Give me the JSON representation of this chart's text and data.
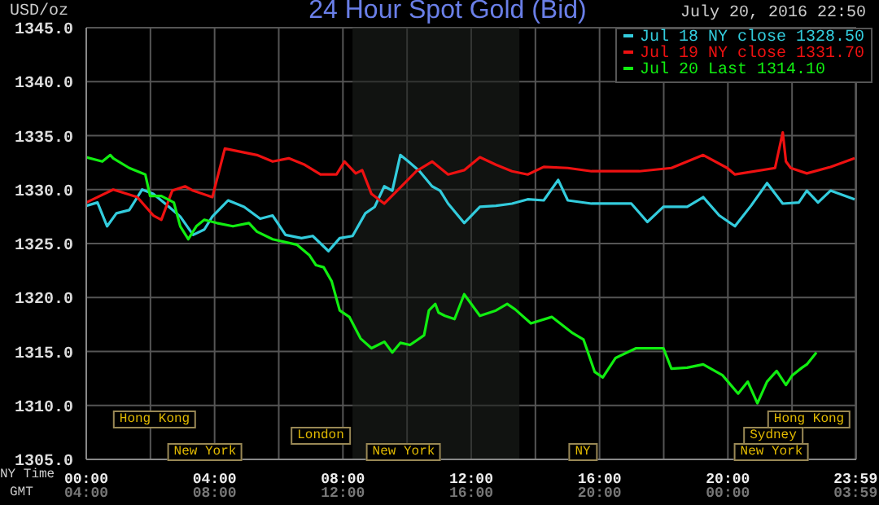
{
  "chart_data": {
    "type": "line",
    "title": "24 Hour Spot Gold (Bid)",
    "subtitle": "July 20, 2016 22:50",
    "ylabel": "USD/oz",
    "xlabel": "NY Time",
    "xlim": [
      0,
      24
    ],
    "xticks": [
      {
        "value": 0,
        "label": "00:00"
      },
      {
        "value": 2,
        "label": null
      },
      {
        "value": 4,
        "label": "04:00"
      },
      {
        "value": 6,
        "label": null
      },
      {
        "value": 8,
        "label": "08:00"
      },
      {
        "value": 10,
        "label": null
      },
      {
        "value": 12,
        "label": "12:00"
      },
      {
        "value": 14,
        "label": null
      },
      {
        "value": 16,
        "label": "16:00"
      },
      {
        "value": 18,
        "label": null
      },
      {
        "value": 20,
        "label": "20:00"
      },
      {
        "value": 22,
        "label": null
      },
      {
        "value": 23.98,
        "label": "23:59"
      }
    ],
    "ylim": [
      1305,
      1345
    ],
    "yticks": [
      {
        "value": 1305,
        "label": "1305.0"
      },
      {
        "value": 1310,
        "label": "1310.0"
      },
      {
        "value": 1315,
        "label": "1315.0"
      },
      {
        "value": 1320,
        "label": "1320.0"
      },
      {
        "value": 1325,
        "label": "1325.0"
      },
      {
        "value": 1330,
        "label": "1330.0"
      },
      {
        "value": 1335,
        "label": "1335.0"
      },
      {
        "value": 1340,
        "label": "1340.0"
      },
      {
        "value": 1345,
        "label": "1345.0"
      }
    ],
    "grid": true,
    "legend": "top right",
    "marker": "none",
    "line_style": "solid",
    "bands": [
      {
        "axis": "x",
        "from": 8.3,
        "to": 13.5,
        "color": "#1c201c"
      }
    ],
    "series": [
      {
        "name": "Jul 18 NY close 1328.50",
        "color": "#33ccdd",
        "x": [
          0,
          0.35,
          0.65,
          0.94,
          1.34,
          1.74,
          2.09,
          2.58,
          2.93,
          3.33,
          3.68,
          3.93,
          4.42,
          4.92,
          5.42,
          5.81,
          6.21,
          6.71,
          7.06,
          7.55,
          7.9,
          8.3,
          8.7,
          8.99,
          9.29,
          9.54,
          9.79,
          10.04,
          10.39,
          10.78,
          11.03,
          11.28,
          11.78,
          12.27,
          12.77,
          13.27,
          13.76,
          14.26,
          14.71,
          15.01,
          15.75,
          16.99,
          17.49,
          17.99,
          18.73,
          19.23,
          19.73,
          20.22,
          20.72,
          21.22,
          21.71,
          22.21,
          22.46,
          22.81,
          23.2,
          23.95
        ],
        "values": [
          1328.5,
          1328.8,
          1326.6,
          1327.8,
          1328.1,
          1330.0,
          1329.6,
          1328.4,
          1327.5,
          1325.8,
          1326.3,
          1327.5,
          1329.0,
          1328.4,
          1327.3,
          1327.6,
          1325.8,
          1325.5,
          1325.7,
          1324.3,
          1325.5,
          1325.7,
          1327.8,
          1328.4,
          1330.3,
          1329.9,
          1333.2,
          1332.6,
          1331.7,
          1330.3,
          1329.9,
          1328.7,
          1326.9,
          1328.4,
          1328.5,
          1328.7,
          1329.1,
          1329.0,
          1330.9,
          1329.0,
          1328.7,
          1328.7,
          1327.0,
          1328.4,
          1328.4,
          1329.3,
          1327.6,
          1326.6,
          1328.5,
          1330.6,
          1328.7,
          1328.8,
          1329.9,
          1328.8,
          1329.9,
          1329.1
        ]
      },
      {
        "name": "Jul 19 NY close 1331.70",
        "color": "#ee1111",
        "x": [
          0,
          0.84,
          1.59,
          2.09,
          2.34,
          2.68,
          3.08,
          3.33,
          3.93,
          4.32,
          4.82,
          5.32,
          5.81,
          6.31,
          6.81,
          7.3,
          7.8,
          8.05,
          8.4,
          8.6,
          8.89,
          9.29,
          9.69,
          10.29,
          10.78,
          11.28,
          11.78,
          12.27,
          12.77,
          13.27,
          13.76,
          14.26,
          15.01,
          15.75,
          17.24,
          18.24,
          19.23,
          19.98,
          20.22,
          21.47,
          21.71,
          21.81,
          21.96,
          22.46,
          23.2,
          23.95
        ],
        "values": [
          1328.8,
          1330.0,
          1329.3,
          1327.6,
          1327.2,
          1329.9,
          1330.3,
          1329.9,
          1329.3,
          1333.8,
          1333.5,
          1333.2,
          1332.6,
          1332.9,
          1332.3,
          1331.4,
          1331.4,
          1332.6,
          1331.5,
          1331.8,
          1329.6,
          1328.7,
          1329.9,
          1331.7,
          1332.6,
          1331.4,
          1331.8,
          1333.0,
          1332.3,
          1331.7,
          1331.4,
          1332.1,
          1332.0,
          1331.7,
          1331.7,
          1332.0,
          1333.2,
          1332.0,
          1331.4,
          1332.0,
          1335.3,
          1332.6,
          1332.0,
          1331.5,
          1332.1,
          1332.9
        ]
      },
      {
        "name": "Jul 20 Last 1314.10",
        "color": "#11ee11",
        "x": [
          0,
          0.5,
          0.75,
          0.84,
          1.34,
          1.84,
          1.99,
          2.34,
          2.73,
          2.93,
          3.18,
          3.43,
          3.68,
          4.07,
          4.57,
          5.07,
          5.32,
          5.81,
          6.56,
          6.96,
          7.16,
          7.4,
          7.65,
          7.9,
          8.2,
          8.55,
          8.89,
          9.29,
          9.54,
          9.79,
          10.09,
          10.53,
          10.68,
          10.88,
          10.98,
          11.18,
          11.48,
          11.78,
          12.27,
          12.77,
          13.12,
          13.37,
          13.86,
          14.51,
          15.16,
          15.5,
          15.85,
          16.1,
          16.5,
          17.14,
          17.99,
          18.24,
          18.73,
          19.23,
          19.83,
          20.32,
          20.62,
          20.92,
          21.22,
          21.52,
          21.81,
          22.01,
          22.31,
          22.46,
          22.76
        ],
        "values": [
          1333.0,
          1332.6,
          1333.2,
          1332.9,
          1332.0,
          1331.4,
          1329.4,
          1329.4,
          1328.8,
          1326.6,
          1325.4,
          1326.6,
          1327.2,
          1326.9,
          1326.6,
          1326.9,
          1326.1,
          1325.4,
          1324.9,
          1323.9,
          1323.0,
          1322.8,
          1321.5,
          1318.8,
          1318.2,
          1316.2,
          1315.3,
          1315.9,
          1314.9,
          1315.8,
          1315.6,
          1316.5,
          1318.8,
          1319.4,
          1318.6,
          1318.3,
          1318.0,
          1320.3,
          1318.3,
          1318.8,
          1319.4,
          1318.9,
          1317.6,
          1318.2,
          1316.7,
          1316.1,
          1313.1,
          1312.6,
          1314.4,
          1315.3,
          1315.3,
          1313.4,
          1313.5,
          1313.8,
          1312.8,
          1311.1,
          1312.2,
          1310.2,
          1312.2,
          1313.2,
          1311.9,
          1312.8,
          1313.5,
          1313.8,
          1314.9
        ]
      }
    ],
    "annotations": [
      "Hong Kong",
      "Hong Kong",
      "London",
      "Sydney",
      "New York",
      "New York",
      "NY",
      "New York",
      "GMT",
      "04:00",
      "08:00",
      "12:00",
      "16:00",
      "20:00",
      "00:00",
      "03:59"
    ]
  }
}
